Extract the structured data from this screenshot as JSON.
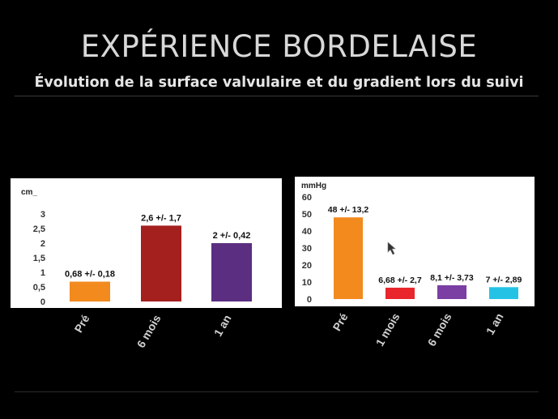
{
  "slide": {
    "title": "EXPÉRIENCE BORDELAISE",
    "subtitle": "Évolution de la surface valvulaire et du gradient lors du suivi"
  },
  "colors": {
    "background": "#000000",
    "panel": "#ffffff",
    "orange": "#f28a1e",
    "dark_red": "#a3201f",
    "purple": "#5b2e81",
    "red": "#e8262b",
    "violet": "#7b3fa3",
    "cyan": "#24c3e6"
  },
  "chart_data": [
    {
      "type": "bar",
      "unit_label": "cm_",
      "categories": [
        "Pré",
        "6 mois",
        "1 an"
      ],
      "values": [
        0.68,
        2.6,
        2.0
      ],
      "data_labels": [
        "0,68 +/- 0,18",
        "2,6 +/- 1,7",
        "2 +/- 0,42"
      ],
      "colors": [
        "#f28a1e",
        "#a3201f",
        "#5b2e81"
      ],
      "yticks": [
        "0",
        "0,5",
        "1",
        "1,5",
        "2",
        "2,5",
        "3"
      ],
      "ylim": [
        0,
        3
      ],
      "grid": false
    },
    {
      "type": "bar",
      "unit_label": "mmHg",
      "categories": [
        "Pré",
        "1 mois",
        "6 mois",
        "1 an"
      ],
      "values": [
        48,
        6.68,
        8.1,
        7
      ],
      "data_labels": [
        "48 +/- 13,2",
        "6,68 +/- 2,7",
        "8,1 +/- 3,73",
        "7 +/- 2,89"
      ],
      "colors": [
        "#f28a1e",
        "#e8262b",
        "#7b3fa3",
        "#24c3e6"
      ],
      "yticks": [
        "0",
        "10",
        "20",
        "30",
        "40",
        "50",
        "60"
      ],
      "ylim": [
        0,
        60
      ],
      "grid": false
    }
  ]
}
